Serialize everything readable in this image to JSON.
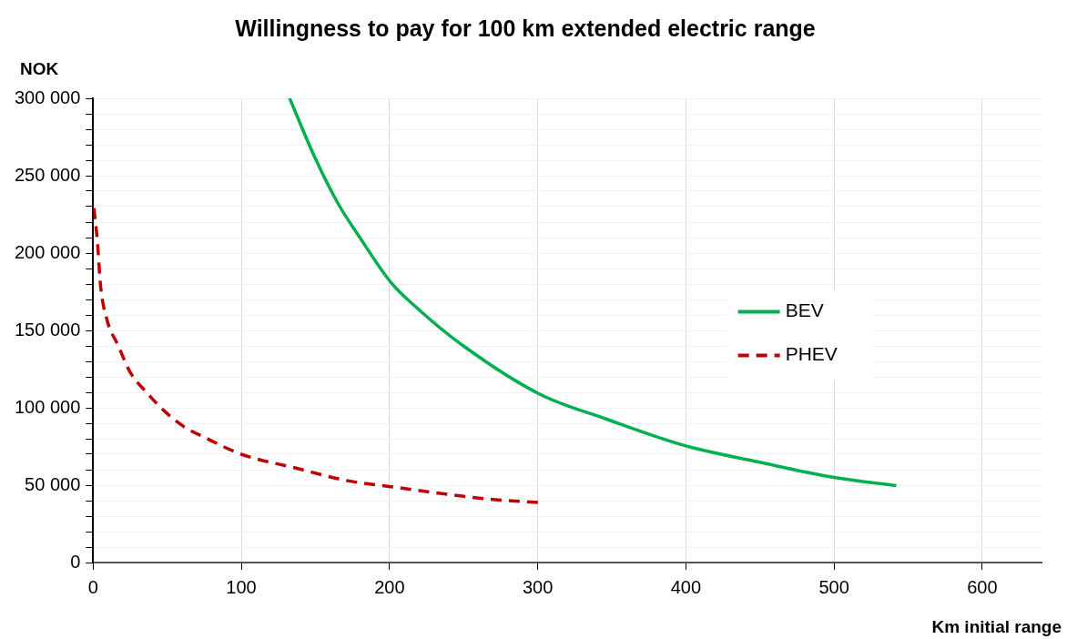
{
  "chart_data": {
    "type": "line",
    "title": "Willingness to pay for 100 km extended electric range",
    "xlabel": "Km initial range",
    "ylabel": "NOK",
    "xlim": [
      0,
      640
    ],
    "xticks": [
      0,
      100,
      200,
      300,
      400,
      500,
      600
    ],
    "ylim": [
      0,
      300000
    ],
    "yticks": [
      {
        "value": 0,
        "label": "0"
      },
      {
        "value": 10000,
        "label": null
      },
      {
        "value": 20000,
        "label": null
      },
      {
        "value": 30000,
        "label": null
      },
      {
        "value": 40000,
        "label": null
      },
      {
        "value": 50000,
        "label": "50 000"
      },
      {
        "value": 60000,
        "label": null
      },
      {
        "value": 70000,
        "label": null
      },
      {
        "value": 80000,
        "label": null
      },
      {
        "value": 90000,
        "label": null
      },
      {
        "value": 100000,
        "label": "100 000"
      },
      {
        "value": 110000,
        "label": null
      },
      {
        "value": 120000,
        "label": null
      },
      {
        "value": 130000,
        "label": null
      },
      {
        "value": 140000,
        "label": null
      },
      {
        "value": 150000,
        "label": "150 000"
      },
      {
        "value": 160000,
        "label": null
      },
      {
        "value": 170000,
        "label": null
      },
      {
        "value": 180000,
        "label": null
      },
      {
        "value": 190000,
        "label": null
      },
      {
        "value": 200000,
        "label": "200 000"
      },
      {
        "value": 210000,
        "label": null
      },
      {
        "value": 220000,
        "label": null
      },
      {
        "value": 230000,
        "label": null
      },
      {
        "value": 240000,
        "label": null
      },
      {
        "value": 250000,
        "label": "250 000"
      },
      {
        "value": 260000,
        "label": null
      },
      {
        "value": 270000,
        "label": null
      },
      {
        "value": 280000,
        "label": null
      },
      {
        "value": 290000,
        "label": null
      },
      {
        "value": 300000,
        "label": "300 000"
      }
    ],
    "grid": true,
    "legend": "right",
    "marker": "none",
    "series": [
      {
        "name": "BEV",
        "color": "#00b050",
        "line_style": "solid",
        "x": [
          132.6,
          150,
          165,
          180,
          201,
          218,
          247,
          301,
          347,
          400,
          449,
          500,
          542
        ],
        "values": [
          300000,
          261000,
          232500,
          210000,
          181000,
          165000,
          142000,
          109000,
          92500,
          75400,
          65000,
          55000,
          49700
        ]
      },
      {
        "name": "PHEV",
        "color": "#c00000",
        "line_style": "dashed",
        "x": [
          0.6,
          3,
          5,
          9,
          17,
          25,
          36,
          48,
          61,
          75,
          100,
          137,
          171,
          201,
          267,
          301
        ],
        "values": [
          229000,
          206000,
          179000,
          158000,
          140000,
          123000,
          110000,
          98000,
          88000,
          81000,
          70000,
          61000,
          53000,
          49000,
          41000,
          38700
        ]
      }
    ]
  }
}
